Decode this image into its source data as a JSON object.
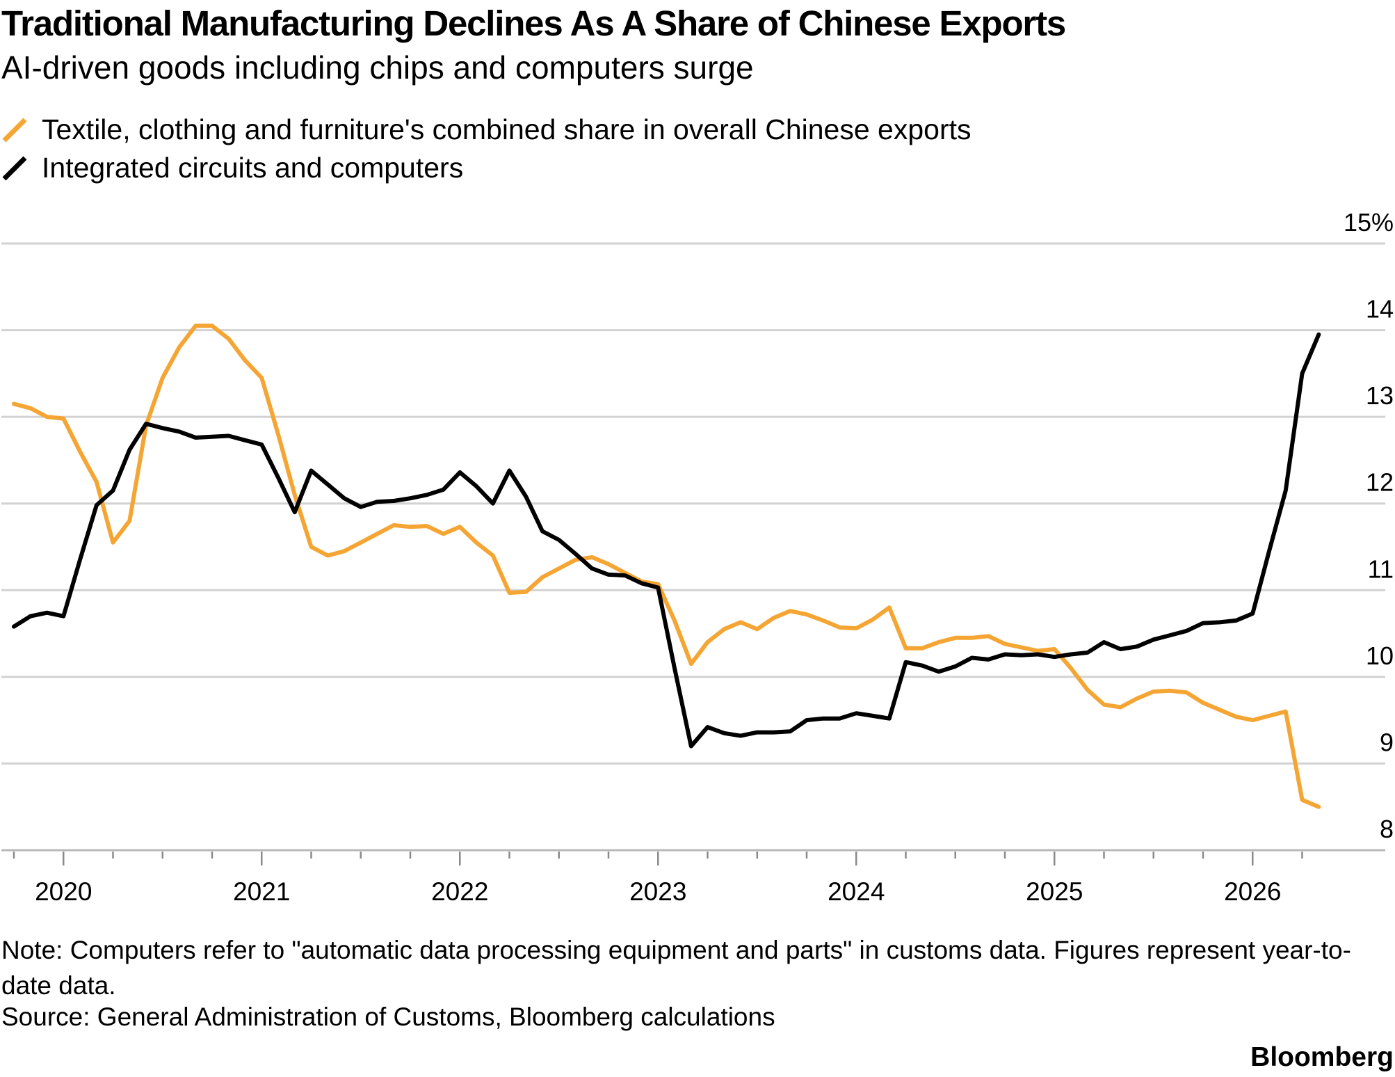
{
  "chart_data": {
    "type": "line",
    "title": "Traditional Manufacturing Declines As A Share of Chinese Exports",
    "subtitle": "AI-driven goods including chips and computers surge",
    "x_start": "2019-10",
    "x_tick_labels": [
      "2020",
      "2021",
      "2022",
      "2023",
      "2024",
      "2025",
      "2026"
    ],
    "y_tick_labels": [
      "15%",
      "14",
      "13",
      "12",
      "11",
      "10",
      "9",
      "8"
    ],
    "ylim": [
      8,
      15
    ],
    "grid": true,
    "legend_position": "top-left",
    "series": [
      {
        "name": "Textile, clothing and furniture's combined share in overall Chinese exports",
        "color": "#f5a533",
        "values": [
          13.15,
          13.1,
          13.0,
          12.98,
          12.6,
          12.25,
          11.55,
          11.8,
          12.9,
          13.45,
          13.8,
          14.05,
          14.05,
          13.9,
          13.65,
          13.45,
          12.8,
          12.1,
          11.5,
          11.4,
          11.45,
          11.55,
          11.65,
          11.75,
          11.73,
          11.74,
          11.65,
          11.73,
          11.55,
          11.4,
          10.97,
          10.98,
          11.15,
          11.25,
          11.35,
          11.38,
          11.3,
          11.2,
          11.1,
          11.07,
          10.65,
          10.15,
          10.4,
          10.55,
          10.63,
          10.55,
          10.68,
          10.76,
          10.72,
          10.65,
          10.57,
          10.56,
          10.66,
          10.8,
          10.33,
          10.33,
          10.4,
          10.45,
          10.45,
          10.47,
          10.38,
          10.34,
          10.3,
          10.32,
          10.1,
          9.85,
          9.68,
          9.65,
          9.75,
          9.83,
          9.84,
          9.82,
          9.7,
          9.62,
          9.54,
          9.5,
          9.55,
          9.6,
          8.58,
          8.5
        ]
      },
      {
        "name": "Integrated circuits and computers",
        "color": "#000000",
        "values": [
          10.58,
          10.7,
          10.74,
          10.7,
          11.35,
          11.98,
          12.15,
          12.62,
          12.92,
          12.87,
          12.83,
          12.76,
          12.77,
          12.78,
          12.73,
          12.68,
          12.3,
          11.9,
          12.38,
          12.22,
          12.06,
          11.96,
          12.02,
          12.03,
          12.06,
          12.1,
          12.16,
          12.36,
          12.2,
          12.0,
          12.38,
          12.08,
          11.68,
          11.58,
          11.42,
          11.25,
          11.18,
          11.17,
          11.08,
          11.03,
          10.1,
          9.2,
          9.42,
          9.35,
          9.32,
          9.36,
          9.36,
          9.37,
          9.5,
          9.52,
          9.52,
          9.58,
          9.55,
          9.52,
          10.17,
          10.13,
          10.06,
          10.12,
          10.22,
          10.2,
          10.26,
          10.25,
          10.26,
          10.23,
          10.26,
          10.28,
          10.4,
          10.32,
          10.35,
          10.43,
          10.48,
          10.53,
          10.62,
          10.63,
          10.65,
          10.73,
          11.45,
          12.15,
          13.5,
          13.95
        ]
      }
    ]
  },
  "legend": [
    {
      "label": "Textile, clothing and furniture's combined share in overall Chinese exports",
      "color": "#f5a533"
    },
    {
      "label": "Integrated circuits and computers",
      "color": "#000000"
    }
  ],
  "note": "Note: Computers refer to \"automatic data processing equipment and parts\" in customs data. Figures represent year-to-date data.",
  "source": "Source: General Administration of Customs, Bloomberg calculations",
  "brand": "Bloomberg"
}
